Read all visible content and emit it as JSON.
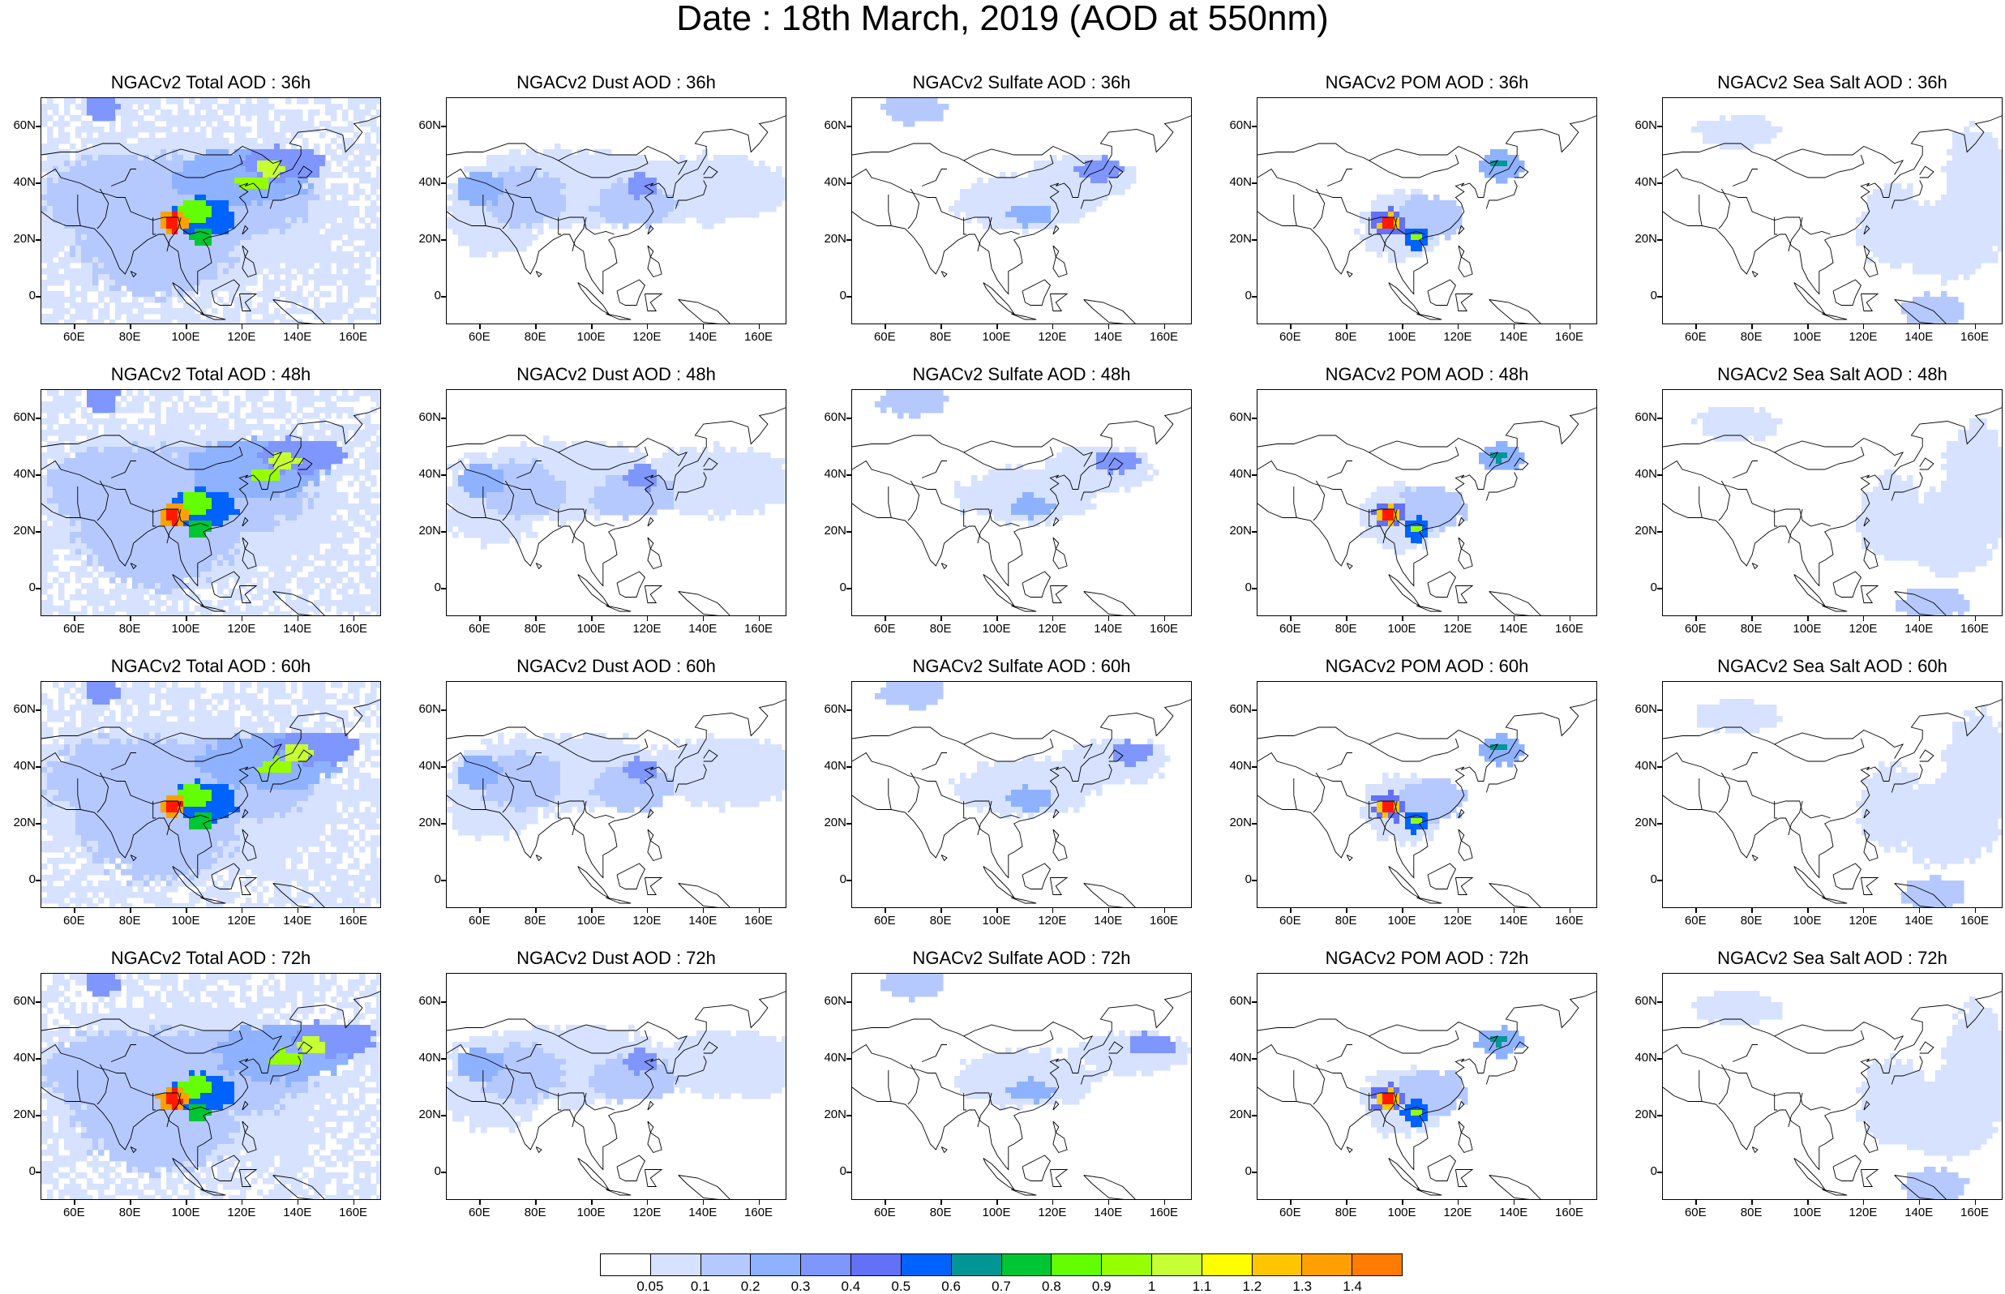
{
  "title": "Date : 18th March, 2019 (AOD at 550nm)",
  "y_ticks": [
    "60N",
    "40N",
    "20N",
    "0"
  ],
  "x_ticks": [
    "60E",
    "80E",
    "100E",
    "120E",
    "140E",
    "160E"
  ],
  "panels": [
    {
      "title": "NGACv2 Total AOD : 36h",
      "type": "total",
      "hour": 36
    },
    {
      "title": "NGACv2 Dust AOD : 36h",
      "type": "dust",
      "hour": 36
    },
    {
      "title": "NGACv2 Sulfate AOD : 36h",
      "type": "sulfate",
      "hour": 36
    },
    {
      "title": "NGACv2 POM AOD : 36h",
      "type": "pom",
      "hour": 36
    },
    {
      "title": "NGACv2 Sea Salt AOD : 36h",
      "type": "seasalt",
      "hour": 36
    },
    {
      "title": "NGACv2 Total AOD : 48h",
      "type": "total",
      "hour": 48
    },
    {
      "title": "NGACv2 Dust AOD : 48h",
      "type": "dust",
      "hour": 48
    },
    {
      "title": "NGACv2 Sulfate AOD : 48h",
      "type": "sulfate",
      "hour": 48
    },
    {
      "title": "NGACv2 POM AOD : 48h",
      "type": "pom",
      "hour": 48
    },
    {
      "title": "NGACv2 Sea Salt AOD : 48h",
      "type": "seasalt",
      "hour": 48
    },
    {
      "title": "NGACv2 Total AOD : 60h",
      "type": "total",
      "hour": 60
    },
    {
      "title": "NGACv2 Dust AOD : 60h",
      "type": "dust",
      "hour": 60
    },
    {
      "title": "NGACv2 Sulfate AOD : 60h",
      "type": "sulfate",
      "hour": 60
    },
    {
      "title": "NGACv2 POM AOD : 60h",
      "type": "pom",
      "hour": 60
    },
    {
      "title": "NGACv2 Sea Salt AOD : 60h",
      "type": "seasalt",
      "hour": 60
    },
    {
      "title": "NGACv2 Total AOD : 72h",
      "type": "total",
      "hour": 72
    },
    {
      "title": "NGACv2 Dust AOD : 72h",
      "type": "dust",
      "hour": 72
    },
    {
      "title": "NGACv2 Sulfate AOD : 72h",
      "type": "sulfate",
      "hour": 72
    },
    {
      "title": "NGACv2 POM AOD : 72h",
      "type": "pom",
      "hour": 72
    },
    {
      "title": "NGACv2 Sea Salt  AOD : 72h",
      "type": "seasalt",
      "hour": 72
    }
  ],
  "colorbar": {
    "labels": [
      "0.05",
      "0.1",
      "0.2",
      "0.3",
      "0.4",
      "0.5",
      "0.6",
      "0.7",
      "0.8",
      "0.9",
      "1",
      "1.1",
      "1.2",
      "1.3",
      "1.4"
    ],
    "colors": [
      "#ffffff",
      "#d6e2ff",
      "#b5c9ff",
      "#8eb2ff",
      "#7f96ff",
      "#6370f8",
      "#0062ff",
      "#009696",
      "#00c633",
      "#63ff00",
      "#96ff00",
      "#c6ff33",
      "#ffff00",
      "#ffc600",
      "#ffa000",
      "#ff7c00",
      "#ff1900"
    ]
  }
}
